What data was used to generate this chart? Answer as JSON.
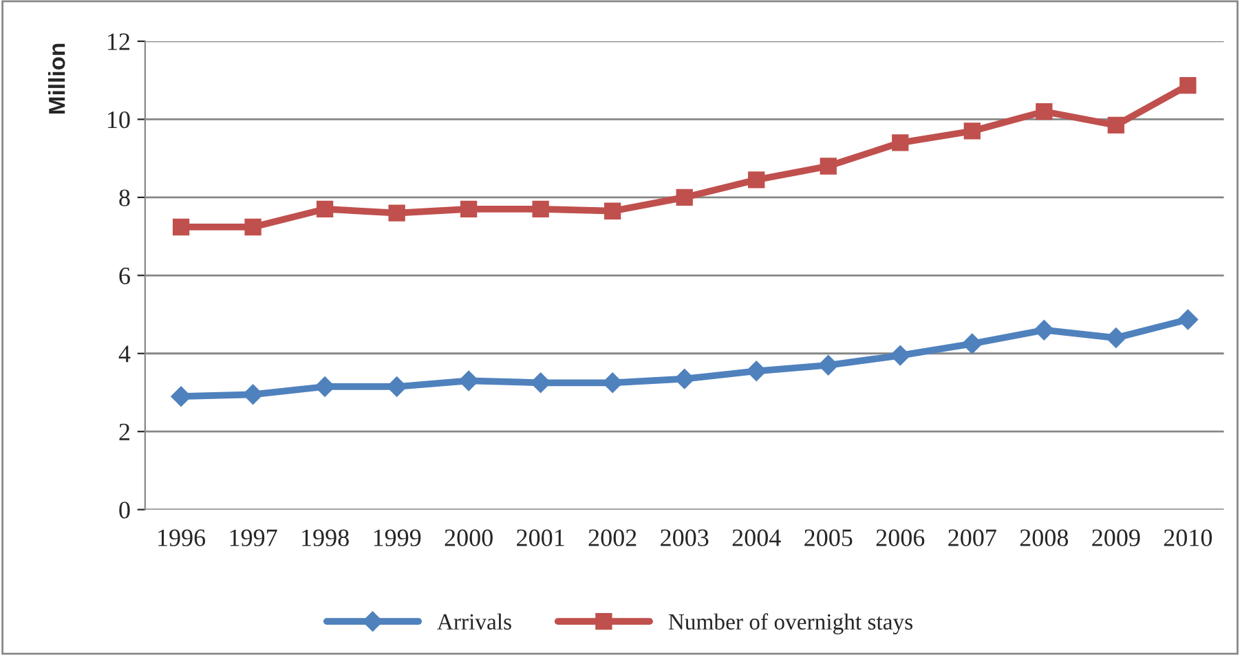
{
  "chart_data": {
    "type": "line",
    "ylabel": "Million",
    "categories": [
      "1996",
      "1997",
      "1998",
      "1999",
      "2000",
      "2001",
      "2002",
      "2003",
      "2004",
      "2005",
      "2006",
      "2007",
      "2008",
      "2009",
      "2010"
    ],
    "series": [
      {
        "name": "Arrivals",
        "color": "#4f81bd",
        "marker": "diamond",
        "values": [
          2.9,
          2.95,
          3.15,
          3.15,
          3.3,
          3.25,
          3.25,
          3.35,
          3.55,
          3.7,
          3.95,
          4.25,
          4.6,
          4.4,
          4.87
        ]
      },
      {
        "name": "Number of overnight stays",
        "color": "#c0504d",
        "marker": "square",
        "values": [
          7.24,
          7.24,
          7.7,
          7.6,
          7.7,
          7.7,
          7.65,
          8.0,
          8.45,
          8.8,
          9.4,
          9.7,
          10.2,
          9.85,
          10.87
        ]
      }
    ],
    "ylim": [
      0,
      12
    ],
    "yticks": [
      0,
      2,
      4,
      6,
      8,
      10,
      12
    ],
    "grid": "y",
    "legend": "bottom"
  }
}
